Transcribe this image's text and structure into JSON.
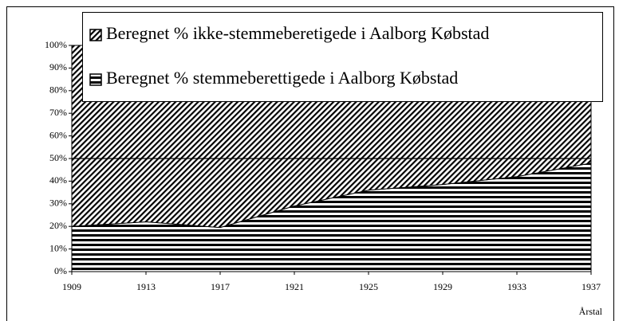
{
  "chart_data": {
    "type": "area",
    "stacked": true,
    "x": [
      1909,
      1913,
      1917,
      1921,
      1925,
      1929,
      1933,
      1937
    ],
    "series": [
      {
        "name": "Beregnet % stemmeberettigede i Aalborg Købstad",
        "color": "#000000",
        "pattern": "horizontal",
        "values": [
          20,
          22,
          19.5,
          29,
          36,
          38.5,
          42,
          48
        ]
      },
      {
        "name": "Beregnet % ikke-stemmeberetigede i Aalborg Købstad",
        "color": "#000000",
        "pattern": "diagonal",
        "values": [
          80,
          78,
          80.5,
          71,
          64,
          61.5,
          58,
          52
        ]
      }
    ],
    "xlim": [
      1909,
      1937
    ],
    "xticks": [
      1909,
      1913,
      1917,
      1921,
      1925,
      1929,
      1933,
      1937
    ],
    "ylim": [
      0,
      100
    ],
    "yticks": [
      {
        "value": 0,
        "label": "0%"
      },
      {
        "value": 10,
        "label": "10%"
      },
      {
        "value": 20,
        "label": "20%"
      },
      {
        "value": 30,
        "label": "30%"
      },
      {
        "value": 40,
        "label": "40%"
      },
      {
        "value": 50,
        "label": "50%"
      },
      {
        "value": 60,
        "label": "60%"
      },
      {
        "value": 70,
        "label": "70%"
      },
      {
        "value": 80,
        "label": "80%"
      },
      {
        "value": 90,
        "label": "90%"
      },
      {
        "value": 100,
        "label": "100%"
      }
    ],
    "hline": 50,
    "x_label": "Årstal"
  }
}
